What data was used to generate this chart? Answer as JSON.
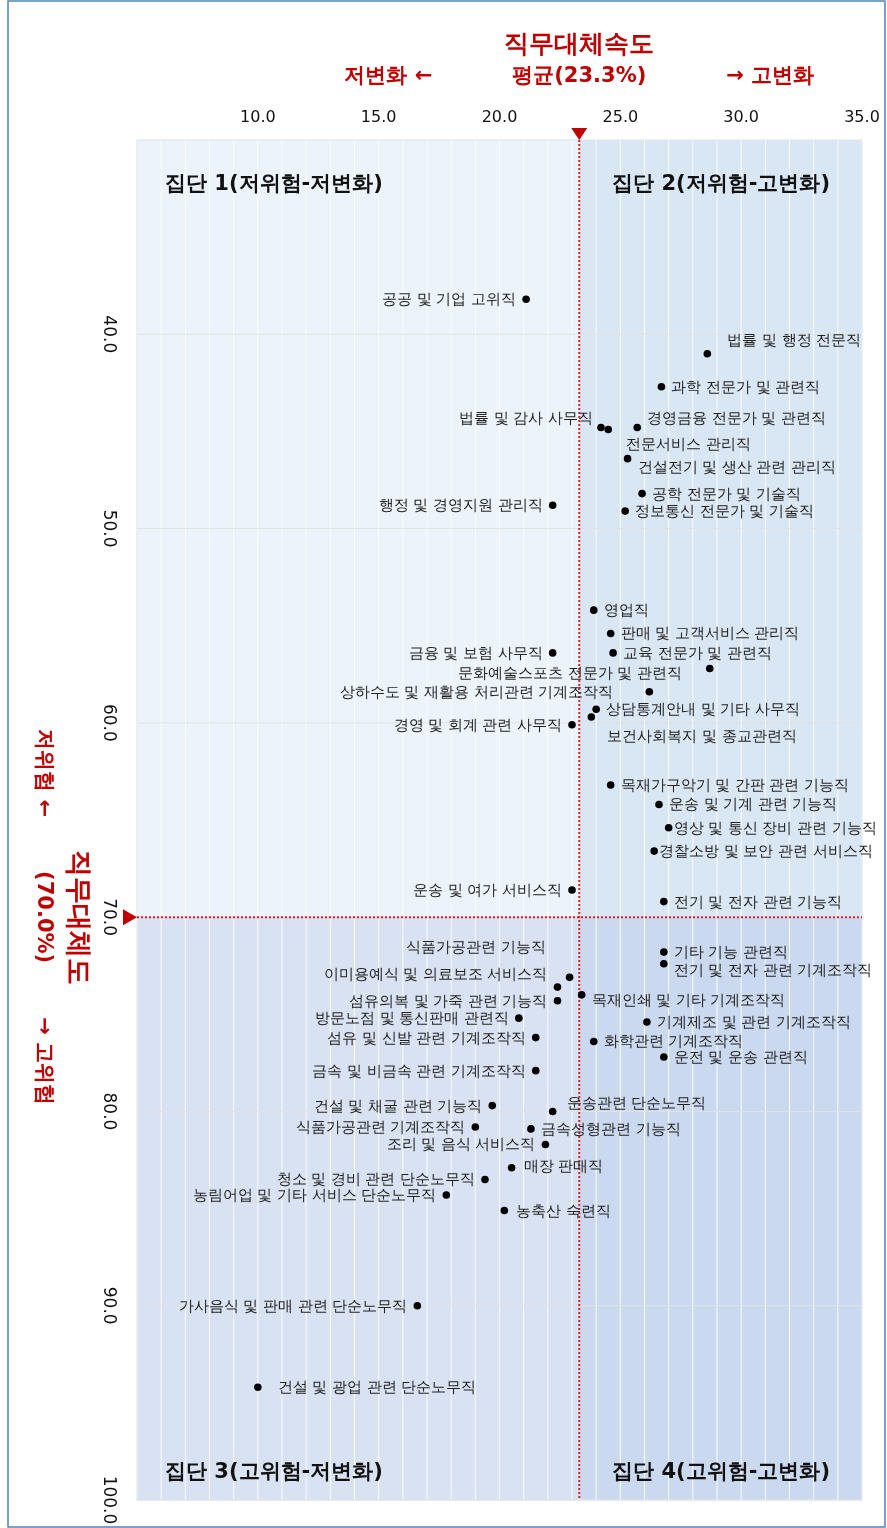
{
  "chart_data": {
    "type": "scatter",
    "xlabel": "직무대체속도",
    "ylabel": "직무대체도",
    "xlim": [
      5,
      35
    ],
    "ylim": [
      100,
      30
    ],
    "xticks": [
      {
        "value": 5,
        "label": null
      },
      {
        "value": 6,
        "label": null
      },
      {
        "value": 7,
        "label": null
      },
      {
        "value": 8,
        "label": null
      },
      {
        "value": 9,
        "label": null
      },
      {
        "value": 10,
        "label": "10.0"
      },
      {
        "value": 11,
        "label": null
      },
      {
        "value": 12,
        "label": null
      },
      {
        "value": 13,
        "label": null
      },
      {
        "value": 14,
        "label": null
      },
      {
        "value": 15,
        "label": "15.0"
      },
      {
        "value": 16,
        "label": null
      },
      {
        "value": 17,
        "label": null
      },
      {
        "value": 18,
        "label": null
      },
      {
        "value": 19,
        "label": null
      },
      {
        "value": 20,
        "label": "20.0"
      },
      {
        "value": 21,
        "label": null
      },
      {
        "value": 22,
        "label": null
      },
      {
        "value": 23,
        "label": null
      },
      {
        "value": 24,
        "label": null
      },
      {
        "value": 25,
        "label": "25.0"
      },
      {
        "value": 26,
        "label": null
      },
      {
        "value": 27,
        "label": null
      },
      {
        "value": 28,
        "label": null
      },
      {
        "value": 29,
        "label": null
      },
      {
        "value": 30,
        "label": "30.0"
      },
      {
        "value": 31,
        "label": null
      },
      {
        "value": 32,
        "label": null
      },
      {
        "value": 33,
        "label": null
      },
      {
        "value": 34,
        "label": null
      },
      {
        "value": 35,
        "label": "35.0"
      }
    ],
    "yticks": [
      {
        "value": 40,
        "label": "40.0"
      },
      {
        "value": 50,
        "label": "50.0"
      },
      {
        "value": 60,
        "label": "60.0"
      },
      {
        "value": 70,
        "label": "70.0"
      },
      {
        "value": 80,
        "label": "80.0"
      },
      {
        "value": 90,
        "label": "90.0"
      },
      {
        "value": 100,
        "label": "100.0"
      }
    ],
    "grid": true,
    "marker": "circle",
    "series": [
      {
        "color": "#000000",
        "x": [
          21.1,
          28.6,
          26.7,
          24.2,
          24.5,
          25.7,
          25.3,
          25.9,
          22.2,
          25.2,
          23.9,
          24.6,
          22.2,
          24.7,
          28.7,
          26.2,
          24.0,
          23.8,
          23.0,
          24.6,
          26.6,
          27.0,
          26.4,
          23.0,
          26.8,
          22.9,
          26.8,
          26.8,
          22.4,
          22.4,
          23.4,
          20.8,
          26.1,
          21.5,
          23.9,
          26.8,
          21.5,
          19.7,
          22.2,
          19.0,
          21.3,
          21.9,
          20.5,
          19.4,
          17.8,
          20.2,
          16.6,
          10.0
        ],
        "values": [
          38.2,
          41.0,
          42.7,
          44.8,
          44.9,
          44.8,
          46.4,
          48.2,
          48.8,
          49.1,
          54.2,
          55.4,
          56.4,
          56.4,
          57.2,
          58.4,
          59.3,
          59.7,
          60.1,
          63.2,
          64.2,
          65.4,
          66.6,
          68.6,
          69.2,
          73.1,
          71.8,
          72.4,
          73.6,
          74.3,
          74.0,
          75.2,
          75.4,
          76.2,
          76.4,
          77.2,
          77.9,
          79.7,
          80.0,
          80.8,
          80.9,
          81.7,
          82.9,
          83.5,
          84.3,
          85.1,
          90.0,
          94.2
        ]
      }
    ],
    "bands": [
      {
        "axis": "x",
        "from": 23.3,
        "to": 35,
        "color": "#b8cfe9"
      },
      {
        "axis": "y",
        "from": 70,
        "to": 100,
        "color": "#a9bce3"
      }
    ],
    "ref_lines": [
      {
        "axis": "x",
        "value": 23.3,
        "label": "평균(23.3%)",
        "color": "#e02020",
        "line_style": "dotted"
      },
      {
        "axis": "y",
        "value": 70,
        "label": "(70.0%)",
        "color": "#e02020",
        "line_style": "dotted"
      }
    ],
    "annotations": [
      "저변화 ←",
      "→ 고변화",
      "저위험 ←",
      "→ 고위험",
      "집단 1(저위험-저변화)",
      "집단 2(저위험-고변화)",
      "집단 3(고위험-저변화)",
      "집단 4(고위험-고변화)",
      {
        "text": "공공 및 기업 고위직",
        "x": 21.1,
        "y": 38.2
      },
      {
        "text": "법률 및 행정 전문직",
        "x": 28.6,
        "y": 41.0
      },
      {
        "text": "과학 전문가 및 관련직",
        "x": 26.7,
        "y": 42.7
      },
      {
        "text": "법률 및 감사 사무직",
        "x": 24.2,
        "y": 44.8
      },
      {
        "text": "전문서비스 관리직",
        "x": 24.5,
        "y": 44.9
      },
      {
        "text": "경영금융 전문가 및 관련직",
        "x": 25.7,
        "y": 44.8
      },
      {
        "text": "건설전기 및 생산 관련 관리직",
        "x": 25.3,
        "y": 46.4
      },
      {
        "text": "공학 전문가 및 기술직",
        "x": 25.9,
        "y": 48.2
      },
      {
        "text": "행정 및 경영지원 관리직",
        "x": 22.2,
        "y": 48.8
      },
      {
        "text": "정보통신 전문가 및 기술직",
        "x": 25.2,
        "y": 49.1
      },
      {
        "text": "영업직",
        "x": 23.9,
        "y": 54.2
      },
      {
        "text": "판매 및 고객서비스 관리직",
        "x": 24.6,
        "y": 55.4
      },
      {
        "text": "금융 및 보험 사무직",
        "x": 22.2,
        "y": 56.4
      },
      {
        "text": "교육 전문가 및 관련직",
        "x": 24.7,
        "y": 56.4
      },
      {
        "text": "문화예술스포츠 전문가 및 관련직",
        "x": 28.7,
        "y": 57.2
      },
      {
        "text": "상하수도 및 재활용 처리관련 기계조작직",
        "x": 26.2,
        "y": 58.4
      },
      {
        "text": "상담통계안내 및 기타 사무직",
        "x": 24.0,
        "y": 59.3
      },
      {
        "text": "보건사회복지 및 종교관련직",
        "x": 23.8,
        "y": 59.7
      },
      {
        "text": "경영 및 회계 관련 사무직",
        "x": 23.0,
        "y": 60.1
      },
      {
        "text": "목재가구악기 및 간판 관련 기능직",
        "x": 24.6,
        "y": 63.2
      },
      {
        "text": "운송 및 기계 관련 기능직",
        "x": 26.6,
        "y": 64.2
      },
      {
        "text": "영상 및 통신 장비 관련 기능직",
        "x": 27.0,
        "y": 65.4
      },
      {
        "text": "경찰소방 및 보안 관련 서비스직",
        "x": 26.4,
        "y": 66.6
      },
      {
        "text": "운송 및 여가 서비스직",
        "x": 23.0,
        "y": 68.6
      },
      {
        "text": "전기 및 전자 관련 기능직",
        "x": 26.8,
        "y": 69.2
      },
      {
        "text": "식품가공관련 기능직",
        "x": 22.9,
        "y": 73.1
      },
      {
        "text": "기타 기능 관련직",
        "x": 26.8,
        "y": 71.8
      },
      {
        "text": "전기 및 전자 관련 기계조작직",
        "x": 26.8,
        "y": 72.4
      },
      {
        "text": "이미용예식 및 의료보조 서비스직",
        "x": 22.4,
        "y": 73.6
      },
      {
        "text": "섬유의복 및 가죽 관련 기능직",
        "x": 22.4,
        "y": 74.3
      },
      {
        "text": "목재인쇄 및 기타 기계조작직",
        "x": 23.4,
        "y": 74.0
      },
      {
        "text": "방문노점 및 통신판매 관련직",
        "x": 20.8,
        "y": 75.2
      },
      {
        "text": "기계제조 및 관련 기계조작직",
        "x": 26.1,
        "y": 75.4
      },
      {
        "text": "섬유 및 신발 관련 기계조작직",
        "x": 21.5,
        "y": 76.2
      },
      {
        "text": "화학관련 기계조작직",
        "x": 23.9,
        "y": 76.4
      },
      {
        "text": "운전 및 운송 관련직",
        "x": 26.8,
        "y": 77.2
      },
      {
        "text": "금속 및 비금속 관련 기계조작직",
        "x": 21.5,
        "y": 77.9
      },
      {
        "text": "건설 및 채굴 관련 기능직",
        "x": 19.7,
        "y": 79.7
      },
      {
        "text": "운송관련 단순노무직",
        "x": 22.2,
        "y": 80.0
      },
      {
        "text": "식품가공관련 기계조작직",
        "x": 19.0,
        "y": 80.8
      },
      {
        "text": "금속성형관련 기능직",
        "x": 21.3,
        "y": 80.9
      },
      {
        "text": "조리 및 음식 서비스직",
        "x": 21.9,
        "y": 81.7
      },
      {
        "text": "매장 판매직",
        "x": 20.5,
        "y": 82.9
      },
      {
        "text": "청소 및 경비 관련 단순노무직",
        "x": 19.4,
        "y": 83.5
      },
      {
        "text": "농림어업 및 기타 서비스 단순노무직",
        "x": 17.8,
        "y": 84.3
      },
      {
        "text": "농축산 숙련직",
        "x": 20.2,
        "y": 85.1
      },
      {
        "text": "가사음식 및 판매 관련 단순노무직",
        "x": 16.6,
        "y": 90.0
      },
      {
        "text": "건설 및 광업 관련 단순노무직",
        "x": 10.0,
        "y": 94.2
      }
    ]
  }
}
